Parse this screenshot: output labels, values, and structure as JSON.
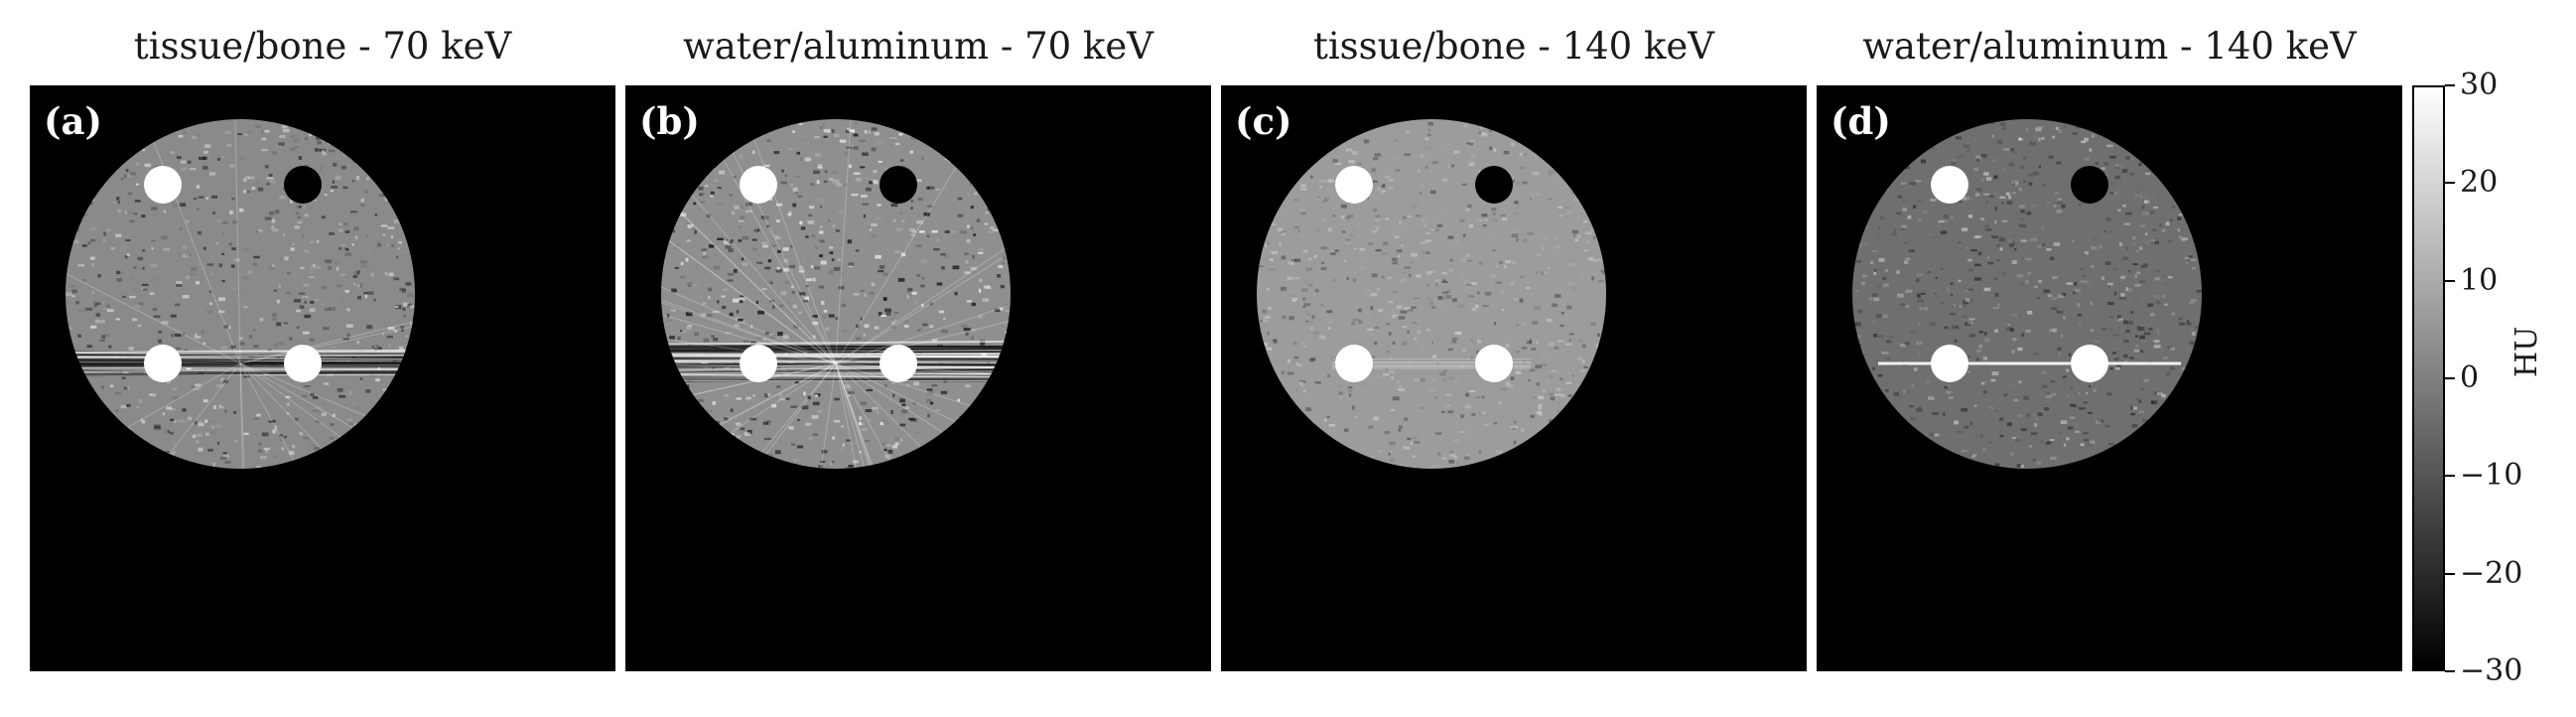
{
  "panels": [
    {
      "title": "tissue/bone - 70 keV",
      "label": "(a)",
      "streak_level": "strong"
    },
    {
      "title": "water/aluminum - 70 keV",
      "label": "(b)",
      "streak_level": "very-strong"
    },
    {
      "title": "tissue/bone - 140 keV",
      "label": "(c)",
      "streak_level": "weak"
    },
    {
      "title": "water/aluminum - 140 keV",
      "label": "(d)",
      "streak_level": "line"
    }
  ],
  "colorbar": {
    "unit": "HU",
    "range": [
      -30,
      30
    ],
    "ticks": [
      "30",
      "20",
      "10",
      "0",
      "−10",
      "−20",
      "−30"
    ],
    "tick_values": [
      30,
      20,
      10,
      0,
      -10,
      -20,
      -30
    ],
    "colormap": "gray"
  }
}
